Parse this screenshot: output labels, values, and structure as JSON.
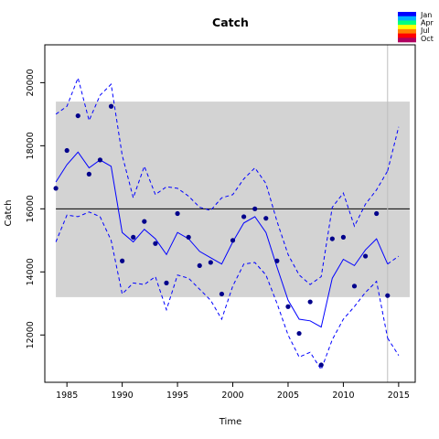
{
  "chart_data": {
    "type": "line",
    "title": "Catch",
    "xlabel": "Time",
    "ylabel": "Catch",
    "xlim": [
      1983,
      2016.5
    ],
    "ylim": [
      10500,
      21200
    ],
    "x_ticks": [
      1985,
      1990,
      1995,
      2000,
      2005,
      2010,
      2015
    ],
    "y_ticks": [
      12000,
      14000,
      16000,
      18000,
      20000
    ],
    "reference_line": 16000,
    "band": {
      "x": [
        1984,
        2016
      ],
      "y": [
        13200,
        19400
      ]
    },
    "vline": 2014,
    "legend": {
      "position": "top-right",
      "entries": [
        "Jan",
        "Apr",
        "Jul",
        "Oct"
      ]
    },
    "colors": {
      "points": "#00008b",
      "fit": "#0000ff",
      "band": "#d3d3d3",
      "vline": "#bebebe",
      "legend_ramp": [
        "#0000ff",
        "#00b0ff",
        "#00ff80",
        "#ffff00",
        "#ff8000",
        "#ff0000",
        "#b00060"
      ]
    },
    "observed": {
      "x": [
        1984,
        1985,
        1986,
        1987,
        1988,
        1989,
        1990,
        1991,
        1992,
        1993,
        1994,
        1995,
        1996,
        1997,
        1998,
        1999,
        2000,
        2001,
        2002,
        2003,
        2004,
        2005,
        2006,
        2007,
        2008,
        2009,
        2010,
        2011,
        2012,
        2013,
        2014
      ],
      "y": [
        16650,
        17850,
        18950,
        17100,
        17550,
        19250,
        14350,
        15100,
        15600,
        14900,
        13650,
        15850,
        15100,
        14200,
        14300,
        13300,
        15000,
        15750,
        16000,
        15700,
        14350,
        12900,
        12050,
        13050,
        11050,
        15050,
        15100,
        13550,
        14500,
        15850,
        13250
      ]
    },
    "fitted": {
      "x": [
        1984,
        1985,
        1986,
        1987,
        1988,
        1989,
        1990,
        1991,
        1992,
        1993,
        1994,
        1995,
        1996,
        1997,
        1998,
        1999,
        2000,
        2001,
        2002,
        2003,
        2004,
        2005,
        2006,
        2007,
        2008,
        2009,
        2010,
        2011,
        2012,
        2013,
        2014
      ],
      "y": [
        16850,
        17400,
        17800,
        17300,
        17550,
        17350,
        15250,
        14950,
        15350,
        15050,
        14550,
        15250,
        15050,
        14650,
        14450,
        14250,
        14950,
        15550,
        15750,
        15250,
        14150,
        13100,
        12500,
        12450,
        12250,
        13800,
        14400,
        14200,
        14700,
        15050,
        14250
      ]
    },
    "upper": {
      "x": [
        1984,
        1985,
        1986,
        1987,
        1988,
        1989,
        1990,
        1991,
        1992,
        1993,
        1994,
        1995,
        1996,
        1997,
        1998,
        1999,
        2000,
        2001,
        2002,
        2003,
        2004,
        2005,
        2006,
        2007,
        2008,
        2009,
        2010,
        2011,
        2012,
        2013,
        2014
      ],
      "y": [
        19000,
        19250,
        20150,
        18800,
        19600,
        19950,
        17700,
        16350,
        17350,
        16450,
        16700,
        16650,
        16400,
        16050,
        15950,
        16350,
        16450,
        16950,
        17300,
        16800,
        15600,
        14550,
        13900,
        13600,
        13850,
        16050,
        16500,
        15450,
        16150,
        16600,
        17200
      ]
    },
    "lower": {
      "x": [
        1984,
        1985,
        1986,
        1987,
        1988,
        1989,
        1990,
        1991,
        1992,
        1993,
        1994,
        1995,
        1996,
        1997,
        1998,
        1999,
        2000,
        2001,
        2002,
        2003,
        2004,
        2005,
        2006,
        2007,
        2008,
        2009,
        2010,
        2011,
        2012,
        2013,
        2014
      ],
      "y": [
        14950,
        15800,
        15750,
        15900,
        15750,
        15000,
        13300,
        13650,
        13600,
        13850,
        12800,
        13900,
        13800,
        13450,
        13100,
        12500,
        13550,
        14250,
        14300,
        13900,
        13000,
        12000,
        11300,
        11450,
        10900,
        11850,
        12500,
        12900,
        13350,
        13700,
        11900
      ]
    },
    "forecast_upper": {
      "x": [
        2014,
        2015
      ],
      "y": [
        17200,
        18600
      ]
    },
    "forecast_fit": {
      "x": [
        2014,
        2015
      ],
      "y": [
        14250,
        14500
      ]
    },
    "forecast_lower": {
      "x": [
        2014,
        2015
      ],
      "y": [
        11900,
        11350
      ]
    }
  }
}
